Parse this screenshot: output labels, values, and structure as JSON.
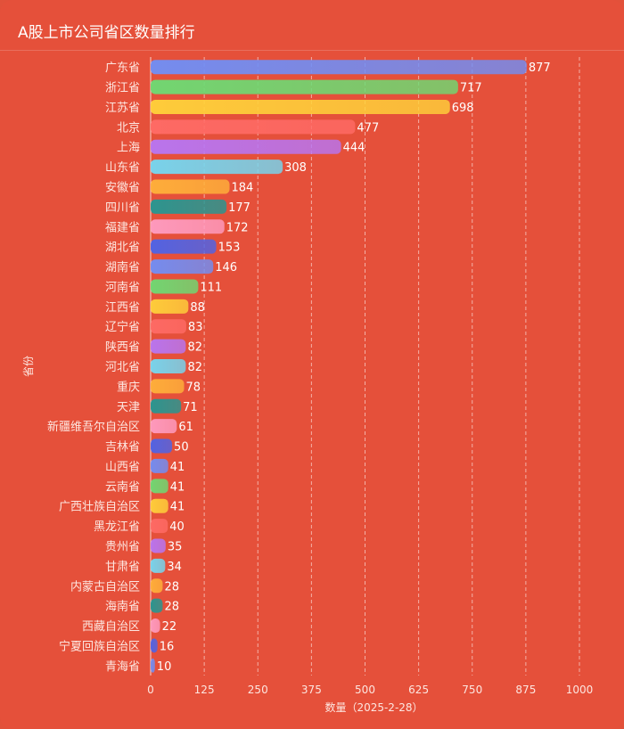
{
  "title": "A股上市公司省区数量排行",
  "colors": {
    "background": "#e5503a",
    "palette": [
      "#6f8ff7",
      "#6cdc74",
      "#ffd23a",
      "#ff6b66",
      "#b776f5",
      "#73d9f3",
      "#ffb23a",
      "#239893",
      "#ff9dc3",
      "#4b64ea"
    ]
  },
  "chart_data": {
    "type": "bar",
    "orientation": "horizontal",
    "ylabel": "省份",
    "xlabel": "数量（2025-2-28）",
    "xlim": [
      0,
      1000
    ],
    "xticks": [
      0,
      125,
      250,
      375,
      500,
      625,
      750,
      875,
      1000
    ],
    "grid": "vertical dashed",
    "categories": [
      "广东省",
      "浙江省",
      "江苏省",
      "北京",
      "上海",
      "山东省",
      "安徽省",
      "四川省",
      "福建省",
      "湖北省",
      "湖南省",
      "河南省",
      "江西省",
      "辽宁省",
      "陕西省",
      "河北省",
      "重庆",
      "天津",
      "新疆维吾尔自治区",
      "吉林省",
      "山西省",
      "云南省",
      "广西壮族自治区",
      "黑龙江省",
      "贵州省",
      "甘肃省",
      "内蒙古自治区",
      "海南省",
      "西藏自治区",
      "宁夏回族自治区",
      "青海省"
    ],
    "values": [
      877,
      717,
      698,
      477,
      444,
      308,
      184,
      177,
      172,
      153,
      146,
      111,
      88,
      83,
      82,
      82,
      78,
      71,
      61,
      50,
      41,
      41,
      41,
      40,
      35,
      34,
      28,
      28,
      22,
      16,
      10
    ]
  }
}
